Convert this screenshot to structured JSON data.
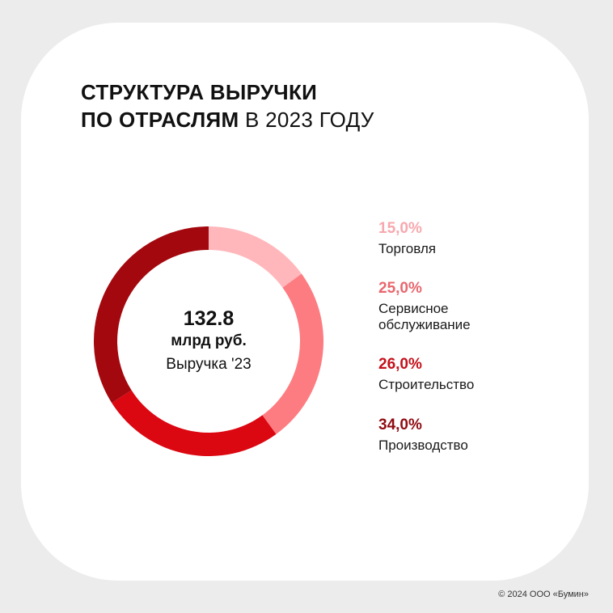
{
  "title": {
    "line1": "СТРУКТУРА ВЫРУЧКИ",
    "line2_bold": "ПО ОТРАСЛЯМ",
    "line2_light": " В 2023 ГОДУ"
  },
  "center": {
    "total": "132.8",
    "unit": "млрд руб.",
    "caption": "Выручка '23"
  },
  "legend": [
    {
      "percent": "15,0%",
      "label": "Торговля",
      "color": "#f7a8ae"
    },
    {
      "percent": "25,0%",
      "label": "Сервисное\nобслуживание",
      "color": "#e8676e"
    },
    {
      "percent": "26,0%",
      "label": "Строительство",
      "color": "#c4101a"
    },
    {
      "percent": "34,0%",
      "label": "Производство",
      "color": "#8f0c12"
    }
  ],
  "footer": "© 2024 ООО «Бумин»",
  "chart_data": {
    "type": "pie",
    "donut": true,
    "categories": [
      "Торговля",
      "Сервисное обслуживание",
      "Строительство",
      "Производство"
    ],
    "values": [
      15.0,
      25.0,
      26.0,
      34.0
    ],
    "colors": [
      "#ffb7bb",
      "#fd7c81",
      "#db0711",
      "#a3080e"
    ],
    "start": "top",
    "direction": "clockwise",
    "legend_placement": "right"
  }
}
